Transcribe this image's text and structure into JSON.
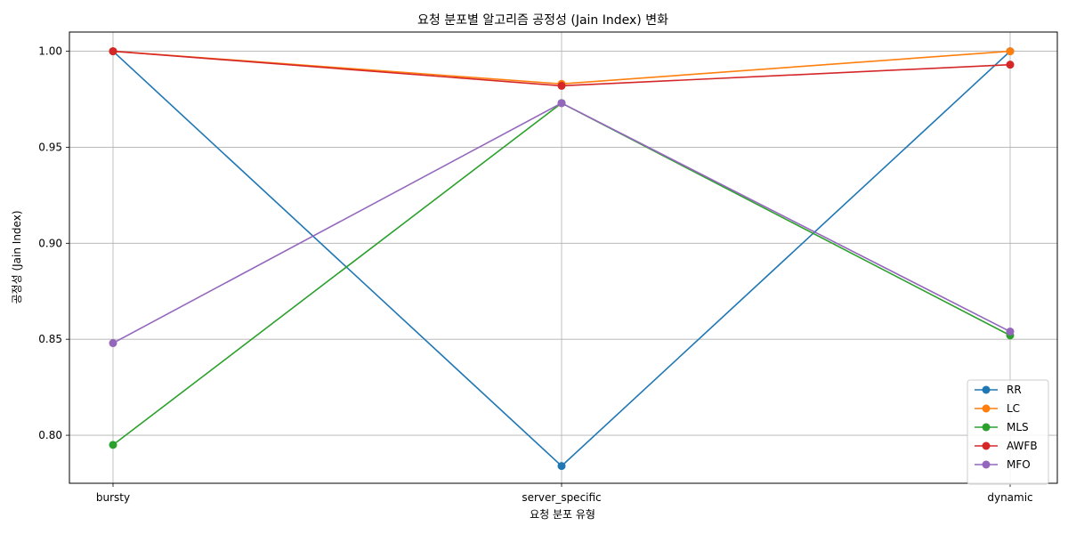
{
  "chart_data": {
    "type": "line",
    "title": "요청 분포별 알고리즘 공정성 (Jain Index) 변화",
    "xlabel": "요청 분포 유형",
    "ylabel": "공정성 (Jain Index)",
    "categories": [
      "bursty",
      "server_specific",
      "dynamic"
    ],
    "ylim": [
      0.775,
      1.01
    ],
    "yticks": [
      "0.80",
      "0.85",
      "0.90",
      "0.95",
      "1.00"
    ],
    "grid": true,
    "legend_position": "bottom-right",
    "series": [
      {
        "name": "RR",
        "color": "#1f77b4",
        "values": [
          1.0,
          0.784,
          1.0
        ]
      },
      {
        "name": "LC",
        "color": "#ff7f0e",
        "values": [
          1.0,
          0.983,
          1.0
        ]
      },
      {
        "name": "MLS",
        "color": "#2ca02c",
        "values": [
          0.795,
          0.973,
          0.852
        ]
      },
      {
        "name": "AWFB",
        "color": "#d62728",
        "values": [
          1.0,
          0.982,
          0.993
        ]
      },
      {
        "name": "MFO",
        "color": "#9467bd",
        "values": [
          0.848,
          0.973,
          0.854
        ]
      }
    ]
  }
}
